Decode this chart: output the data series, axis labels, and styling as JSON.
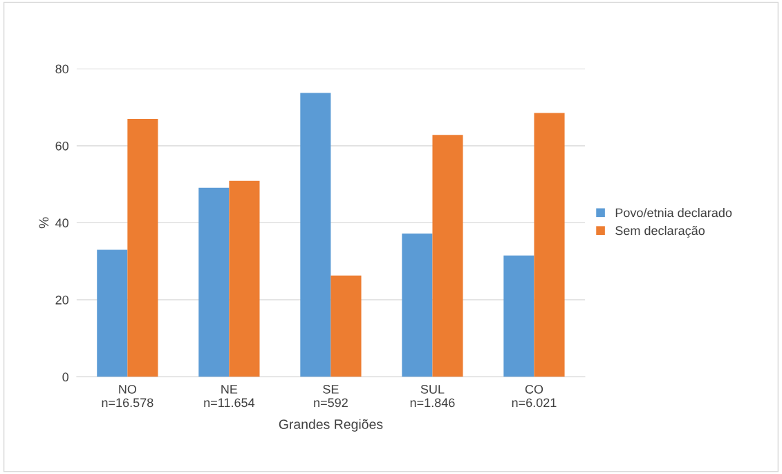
{
  "chart_data": {
    "type": "bar",
    "xlabel": "Grandes Regiões",
    "ylabel": "%",
    "categories": [
      "NO\nn=16.578",
      "NE\nn=11.654",
      "SE\nn=592",
      "SUL\nn=1.846",
      "CO\nn=6.021"
    ],
    "series": [
      {
        "name": "Povo/etnia declarado",
        "color": "#5b9bd5",
        "values": [
          33.0,
          49.1,
          73.7,
          37.2,
          31.5
        ]
      },
      {
        "name": "Sem declaração",
        "color": "#ed7d31",
        "values": [
          67.0,
          50.9,
          26.3,
          62.8,
          68.5
        ]
      }
    ],
    "ylim": [
      0,
      80
    ],
    "yticks": [
      0,
      20,
      40,
      60,
      80
    ],
    "grid": "y",
    "legend": "right"
  }
}
